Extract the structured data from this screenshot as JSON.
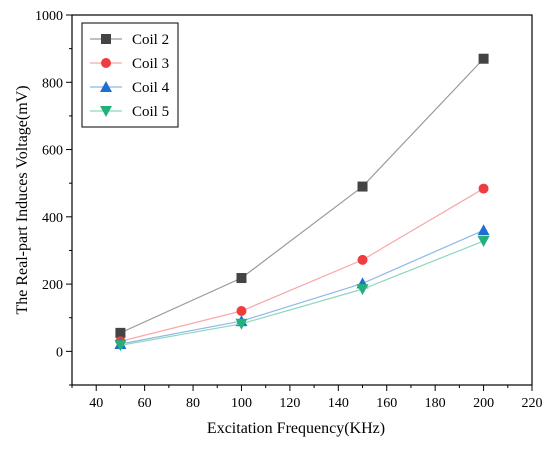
{
  "chart_data": {
    "type": "line",
    "xlabel": "Excitation Frequency(KHz)",
    "ylabel": "The Real-part Induces Voltage(mV)",
    "xlim": [
      30,
      220
    ],
    "ylim": [
      -100,
      1000
    ],
    "xticks": [
      40,
      60,
      80,
      100,
      120,
      140,
      160,
      180,
      200,
      220
    ],
    "yticks": [
      0,
      200,
      400,
      600,
      800,
      1000
    ],
    "grid": false,
    "legend_position": "top-left",
    "x": [
      50,
      100,
      150,
      200
    ],
    "series": [
      {
        "name": "Coil 2",
        "marker": "square",
        "color": "#444444",
        "line_color": "#9a9a9a",
        "values": [
          55,
          218,
          490,
          870
        ]
      },
      {
        "name": "Coil 3",
        "marker": "circle",
        "color": "#f03c3c",
        "line_color": "#f7a8a8",
        "values": [
          30,
          120,
          272,
          484
        ]
      },
      {
        "name": "Coil 4",
        "marker": "triangle-up",
        "color": "#1f6fd0",
        "line_color": "#8fb8ea",
        "values": [
          22,
          90,
          202,
          360
        ]
      },
      {
        "name": "Coil 5",
        "marker": "triangle-down",
        "color": "#23b07a",
        "line_color": "#8ed8bb",
        "values": [
          18,
          82,
          185,
          328
        ]
      }
    ]
  }
}
